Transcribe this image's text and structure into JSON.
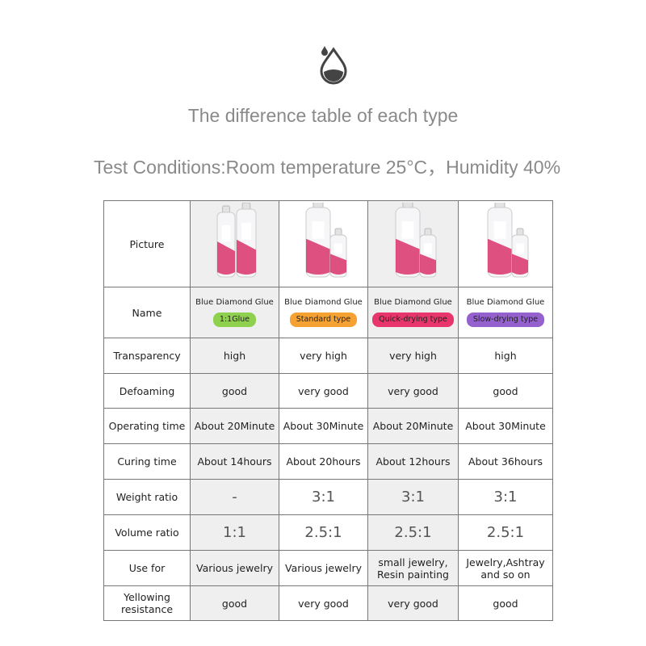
{
  "header": {
    "title": "The difference table of each type",
    "subtitle": "Test Conditions:Room temperature 25°C，Humidity 40%"
  },
  "table": {
    "rows": [
      {
        "label": "Picture"
      },
      {
        "label": "Name",
        "cells": [
          {
            "name": "Blue Diamond Glue",
            "badge": "1:1Glue",
            "badge_color": "#8fd14f"
          },
          {
            "name": "Blue Diamond Glue",
            "badge": "Standard type",
            "badge_color": "#f5a233"
          },
          {
            "name": "Blue Diamond Glue",
            "badge": "Quick-drying type",
            "badge_color": "#e8366c"
          },
          {
            "name": "Blue Diamond Glue",
            "badge": "Slow-drying type",
            "badge_color": "#9461cf"
          }
        ]
      },
      {
        "label": "Transparency",
        "cells": [
          "high",
          "very high",
          "very high",
          "high"
        ]
      },
      {
        "label": "Defoaming",
        "cells": [
          "good",
          "very good",
          "very good",
          "good"
        ]
      },
      {
        "label": "Operating time",
        "cells": [
          "About 20Minute",
          "About 30Minute",
          "About 20Minute",
          "About 30Minute"
        ]
      },
      {
        "label": "Curing time",
        "cells": [
          "About 14hours",
          "About 20hours",
          "About 12hours",
          "About 36hours"
        ]
      },
      {
        "label": "Weight ratio",
        "cells": [
          "-",
          "3:1",
          "3:1",
          "3:1"
        ],
        "large": true
      },
      {
        "label": "Volume ratio",
        "cells": [
          "1:1",
          "2.5:1",
          "2.5:1",
          "2.5:1"
        ],
        "large": true
      },
      {
        "label": "Use for",
        "cells": [
          "Various jewelry",
          "Various jewelry",
          "small jewelry,\nResin painting",
          "Jewelry,Ashtray\nand so on"
        ]
      },
      {
        "label": "Yellowing\nresistance",
        "cells": [
          "good",
          "very good",
          "very good",
          "good"
        ]
      }
    ]
  }
}
